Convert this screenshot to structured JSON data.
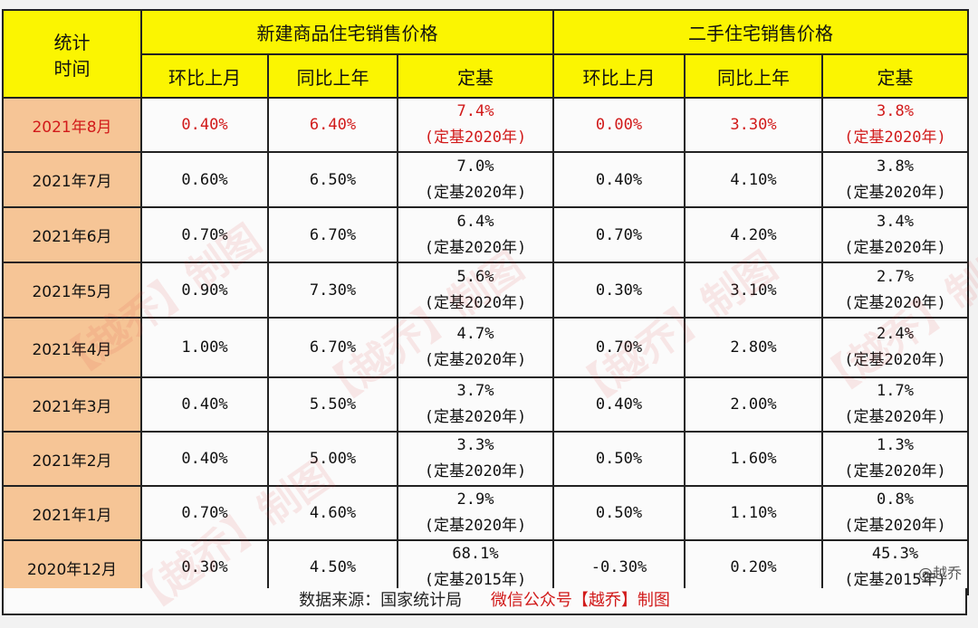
{
  "header": {
    "time_label_1": "统计",
    "time_label_2": "时间",
    "group_new": "新建商品住宅销售价格",
    "group_second": "二手住宅销售价格",
    "cols": [
      "环比上月",
      "同比上年",
      "定基",
      "环比上月",
      "同比上年",
      "定基"
    ]
  },
  "rows": [
    {
      "month": "2021年8月",
      "new_mom": "0.40%",
      "new_yoy": "6.40%",
      "new_base_val": "7.4%",
      "new_base_note": "(定基2020年)",
      "sec_mom": "0.00%",
      "sec_yoy": "3.30%",
      "sec_base_val": "3.8%",
      "sec_base_note": "(定基2020年)"
    },
    {
      "month": "2021年7月",
      "new_mom": "0.60%",
      "new_yoy": "6.50%",
      "new_base_val": "7.0%",
      "new_base_note": "(定基2020年)",
      "sec_mom": "0.40%",
      "sec_yoy": "4.10%",
      "sec_base_val": "3.8%",
      "sec_base_note": "(定基2020年)"
    },
    {
      "month": "2021年6月",
      "new_mom": "0.70%",
      "new_yoy": "6.70%",
      "new_base_val": "6.4%",
      "new_base_note": "(定基2020年)",
      "sec_mom": "0.70%",
      "sec_yoy": "4.20%",
      "sec_base_val": "3.4%",
      "sec_base_note": "(定基2020年)"
    },
    {
      "month": "2021年5月",
      "new_mom": "0.90%",
      "new_yoy": "7.30%",
      "new_base_val": "5.6%",
      "new_base_note": "(定基2020年)",
      "sec_mom": "0.30%",
      "sec_yoy": "3.10%",
      "sec_base_val": "2.7%",
      "sec_base_note": "(定基2020年)"
    },
    {
      "month": "2021年4月",
      "new_mom": "1.00%",
      "new_yoy": "6.70%",
      "new_base_val": "4.7%",
      "new_base_note": "(定基2020年)",
      "sec_mom": "0.70%",
      "sec_yoy": "2.80%",
      "sec_base_val": "2.4%",
      "sec_base_note": "(定基2020年)"
    },
    {
      "month": "2021年3月",
      "new_mom": "0.40%",
      "new_yoy": "5.50%",
      "new_base_val": "3.7%",
      "new_base_note": "(定基2020年)",
      "sec_mom": "0.40%",
      "sec_yoy": "2.00%",
      "sec_base_val": "1.7%",
      "sec_base_note": "(定基2020年)"
    },
    {
      "month": "2021年2月",
      "new_mom": "0.40%",
      "new_yoy": "5.00%",
      "new_base_val": "3.3%",
      "new_base_note": "(定基2020年)",
      "sec_mom": "0.50%",
      "sec_yoy": "1.60%",
      "sec_base_val": "1.3%",
      "sec_base_note": "(定基2020年)"
    },
    {
      "month": "2021年1月",
      "new_mom": "0.70%",
      "new_yoy": "4.60%",
      "new_base_val": "2.9%",
      "new_base_note": "(定基2020年)",
      "sec_mom": "0.50%",
      "sec_yoy": "1.10%",
      "sec_base_val": "0.8%",
      "sec_base_note": "(定基2020年)"
    },
    {
      "month": "2020年12月",
      "new_mom": "0.30%",
      "new_yoy": "4.50%",
      "new_base_val": "68.1%",
      "new_base_note": "(定基2015年)",
      "sec_mom": "-0.30%",
      "sec_yoy": "0.20%",
      "sec_base_val": "45.3%",
      "sec_base_note": "(定基2015年)"
    }
  ],
  "footer": {
    "source": "数据来源：国家统计局",
    "brand": "微信公众号【越乔】制图"
  },
  "watermark": {
    "text": "【越乔】制图",
    "corner": "@越乔"
  },
  "colors": {
    "header_bg": "#fbf501",
    "row_label_bg": "#f6c596",
    "highlight": "#d11a1a"
  }
}
